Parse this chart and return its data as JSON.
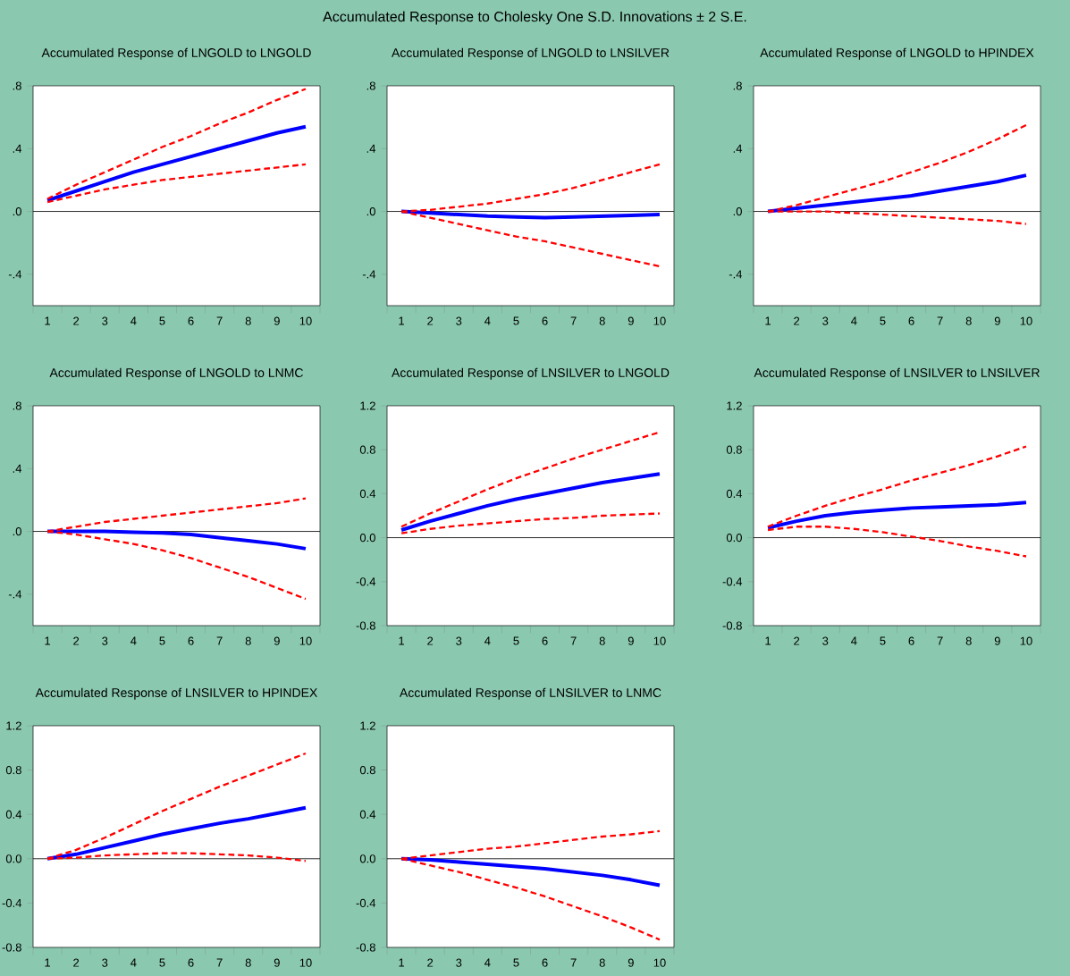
{
  "chart_data": [
    {
      "type": "other",
      "title": "Accumulated Response to Cholesky One S.D. Innovations ± 2 S.E."
    },
    {
      "type": "line",
      "title": "Accumulated Response of  LNGOLD to LNGOLD",
      "categories": [
        "1",
        "2",
        "3",
        "4",
        "5",
        "6",
        "7",
        "8",
        "9",
        "10"
      ],
      "ylim": [
        -0.6,
        0.8
      ],
      "yticks": [
        {
          "value": 0.8,
          "label": ".8"
        },
        {
          "value": 0.4,
          "label": ".4"
        },
        {
          "value": 0,
          "label": ".0"
        },
        {
          "value": -0.4,
          "label": "-.4"
        }
      ],
      "ref_lines": [
        {
          "axis": "y",
          "value": 0,
          "color": "#000000"
        }
      ],
      "series": [
        {
          "color": "#0000ff",
          "line_style": "solid",
          "values": [
            0.07,
            0.13,
            0.19,
            0.25,
            0.3,
            0.35,
            0.4,
            0.45,
            0.5,
            0.54
          ]
        },
        {
          "color": "#ff0000",
          "line_style": "dashed",
          "values": [
            0.08,
            0.17,
            0.25,
            0.33,
            0.41,
            0.48,
            0.56,
            0.63,
            0.71,
            0.78
          ]
        },
        {
          "color": "#ff0000",
          "line_style": "dashed",
          "values": [
            0.06,
            0.1,
            0.14,
            0.17,
            0.2,
            0.22,
            0.24,
            0.26,
            0.28,
            0.3
          ]
        }
      ]
    },
    {
      "type": "line",
      "title": "Accumulated Response of  LNGOLD to LNSILVER",
      "categories": [
        "1",
        "2",
        "3",
        "4",
        "5",
        "6",
        "7",
        "8",
        "9",
        "10"
      ],
      "ylim": [
        -0.6,
        0.8
      ],
      "yticks": [
        {
          "value": 0.8,
          "label": ".8"
        },
        {
          "value": 0.4,
          "label": ".4"
        },
        {
          "value": 0,
          "label": ".0"
        },
        {
          "value": -0.4,
          "label": "-.4"
        }
      ],
      "ref_lines": [
        {
          "axis": "y",
          "value": 0,
          "color": "#000000"
        }
      ],
      "series": [
        {
          "color": "#0000ff",
          "line_style": "solid",
          "values": [
            0,
            -0.01,
            -0.02,
            -0.03,
            -0.035,
            -0.04,
            -0.035,
            -0.03,
            -0.025,
            -0.02
          ]
        },
        {
          "color": "#ff0000",
          "line_style": "dashed",
          "values": [
            0,
            0.01,
            0.03,
            0.05,
            0.08,
            0.11,
            0.15,
            0.2,
            0.25,
            0.3
          ]
        },
        {
          "color": "#ff0000",
          "line_style": "dashed",
          "values": [
            0,
            -0.04,
            -0.08,
            -0.12,
            -0.16,
            -0.19,
            -0.23,
            -0.27,
            -0.31,
            -0.35
          ]
        }
      ]
    },
    {
      "type": "line",
      "title": "Accumulated Response of  LNGOLD to HPINDEX",
      "categories": [
        "1",
        "2",
        "3",
        "4",
        "5",
        "6",
        "7",
        "8",
        "9",
        "10"
      ],
      "ylim": [
        -0.6,
        0.8
      ],
      "yticks": [
        {
          "value": 0.8,
          "label": ".8"
        },
        {
          "value": 0.4,
          "label": ".4"
        },
        {
          "value": 0,
          "label": ".0"
        },
        {
          "value": -0.4,
          "label": "-.4"
        }
      ],
      "ref_lines": [
        {
          "axis": "y",
          "value": 0,
          "color": "#000000"
        }
      ],
      "series": [
        {
          "color": "#0000ff",
          "line_style": "solid",
          "values": [
            0,
            0.02,
            0.04,
            0.06,
            0.08,
            0.1,
            0.13,
            0.16,
            0.19,
            0.23
          ]
        },
        {
          "color": "#ff0000",
          "line_style": "dashed",
          "values": [
            0,
            0.04,
            0.09,
            0.14,
            0.19,
            0.25,
            0.31,
            0.38,
            0.46,
            0.55
          ]
        },
        {
          "color": "#ff0000",
          "line_style": "dashed",
          "values": [
            0,
            0,
            0,
            -0.01,
            -0.02,
            -0.03,
            -0.04,
            -0.05,
            -0.06,
            -0.08
          ]
        }
      ]
    },
    {
      "type": "line",
      "title": "Accumulated Response of  LNGOLD to LNMC",
      "categories": [
        "1",
        "2",
        "3",
        "4",
        "5",
        "6",
        "7",
        "8",
        "9",
        "10"
      ],
      "ylim": [
        -0.6,
        0.8
      ],
      "yticks": [
        {
          "value": 0.8,
          "label": ".8"
        },
        {
          "value": 0.4,
          "label": ".4"
        },
        {
          "value": 0,
          "label": ".0"
        },
        {
          "value": -0.4,
          "label": "-.4"
        }
      ],
      "ref_lines": [
        {
          "axis": "y",
          "value": 0,
          "color": "#000000"
        }
      ],
      "series": [
        {
          "color": "#0000ff",
          "line_style": "solid",
          "values": [
            0,
            0,
            0,
            -0.005,
            -0.01,
            -0.02,
            -0.04,
            -0.06,
            -0.08,
            -0.11
          ]
        },
        {
          "color": "#ff0000",
          "line_style": "dashed",
          "values": [
            0,
            0.03,
            0.06,
            0.08,
            0.1,
            0.12,
            0.14,
            0.16,
            0.18,
            0.21
          ]
        },
        {
          "color": "#ff0000",
          "line_style": "dashed",
          "values": [
            0,
            -0.02,
            -0.05,
            -0.08,
            -0.12,
            -0.17,
            -0.23,
            -0.29,
            -0.36,
            -0.43
          ]
        }
      ]
    },
    {
      "type": "line",
      "title": "Accumulated Response of  LNSILVER to LNGOLD",
      "categories": [
        "1",
        "2",
        "3",
        "4",
        "5",
        "6",
        "7",
        "8",
        "9",
        "10"
      ],
      "ylim": [
        -0.8,
        1.2
      ],
      "yticks": [
        {
          "value": 1.2,
          "label": "1.2"
        },
        {
          "value": 0.8,
          "label": "0.8"
        },
        {
          "value": 0.4,
          "label": "0.4"
        },
        {
          "value": 0,
          "label": "0.0"
        },
        {
          "value": -0.4,
          "label": "-0.4"
        },
        {
          "value": -0.8,
          "label": "-0.8"
        }
      ],
      "ref_lines": [
        {
          "axis": "y",
          "value": 0,
          "color": "#000000"
        }
      ],
      "series": [
        {
          "color": "#0000ff",
          "line_style": "solid",
          "values": [
            0.07,
            0.15,
            0.22,
            0.29,
            0.35,
            0.4,
            0.45,
            0.5,
            0.54,
            0.58
          ]
        },
        {
          "color": "#ff0000",
          "line_style": "dashed",
          "values": [
            0.1,
            0.22,
            0.33,
            0.44,
            0.54,
            0.63,
            0.72,
            0.8,
            0.88,
            0.96
          ]
        },
        {
          "color": "#ff0000",
          "line_style": "dashed",
          "values": [
            0.04,
            0.08,
            0.11,
            0.13,
            0.15,
            0.17,
            0.18,
            0.2,
            0.21,
            0.22
          ]
        }
      ]
    },
    {
      "type": "line",
      "title": "Accumulated Response of  LNSILVER to LNSILVER",
      "categories": [
        "1",
        "2",
        "3",
        "4",
        "5",
        "6",
        "7",
        "8",
        "9",
        "10"
      ],
      "ylim": [
        -0.8,
        1.2
      ],
      "yticks": [
        {
          "value": 1.2,
          "label": "1.2"
        },
        {
          "value": 0.8,
          "label": "0.8"
        },
        {
          "value": 0.4,
          "label": "0.4"
        },
        {
          "value": 0,
          "label": "0.0"
        },
        {
          "value": -0.4,
          "label": "-0.4"
        },
        {
          "value": -0.8,
          "label": "-0.8"
        }
      ],
      "ref_lines": [
        {
          "axis": "y",
          "value": 0,
          "color": "#000000"
        }
      ],
      "series": [
        {
          "color": "#0000ff",
          "line_style": "solid",
          "values": [
            0.09,
            0.15,
            0.2,
            0.23,
            0.25,
            0.27,
            0.28,
            0.29,
            0.3,
            0.32
          ]
        },
        {
          "color": "#ff0000",
          "line_style": "dashed",
          "values": [
            0.1,
            0.2,
            0.29,
            0.37,
            0.44,
            0.52,
            0.59,
            0.66,
            0.74,
            0.83
          ]
        },
        {
          "color": "#ff0000",
          "line_style": "dashed",
          "values": [
            0.07,
            0.1,
            0.1,
            0.08,
            0.05,
            0.01,
            -0.03,
            -0.08,
            -0.12,
            -0.17
          ]
        }
      ]
    },
    {
      "type": "line",
      "title": "Accumulated Response of  LNSILVER to HPINDEX",
      "categories": [
        "1",
        "2",
        "3",
        "4",
        "5",
        "6",
        "7",
        "8",
        "9",
        "10"
      ],
      "ylim": [
        -0.8,
        1.2
      ],
      "yticks": [
        {
          "value": 1.2,
          "label": "1.2"
        },
        {
          "value": 0.8,
          "label": "0.8"
        },
        {
          "value": 0.4,
          "label": "0.4"
        },
        {
          "value": 0,
          "label": "0.0"
        },
        {
          "value": -0.4,
          "label": "-0.4"
        },
        {
          "value": -0.8,
          "label": "-0.8"
        }
      ],
      "ref_lines": [
        {
          "axis": "y",
          "value": 0,
          "color": "#000000"
        }
      ],
      "series": [
        {
          "color": "#0000ff",
          "line_style": "solid",
          "values": [
            0,
            0.04,
            0.1,
            0.16,
            0.22,
            0.27,
            0.32,
            0.36,
            0.41,
            0.46
          ]
        },
        {
          "color": "#ff0000",
          "line_style": "dashed",
          "values": [
            0,
            0.08,
            0.19,
            0.31,
            0.43,
            0.54,
            0.65,
            0.75,
            0.85,
            0.95
          ]
        },
        {
          "color": "#ff0000",
          "line_style": "dashed",
          "values": [
            0,
            0.01,
            0.03,
            0.04,
            0.05,
            0.05,
            0.04,
            0.03,
            0.01,
            -0.02
          ]
        }
      ]
    },
    {
      "type": "line",
      "title": "Accumulated Response of  LNSILVER to LNMC",
      "categories": [
        "1",
        "2",
        "3",
        "4",
        "5",
        "6",
        "7",
        "8",
        "9",
        "10"
      ],
      "ylim": [
        -0.8,
        1.2
      ],
      "yticks": [
        {
          "value": 1.2,
          "label": "1.2"
        },
        {
          "value": 0.8,
          "label": "0.8"
        },
        {
          "value": 0.4,
          "label": "0.4"
        },
        {
          "value": 0,
          "label": "0.0"
        },
        {
          "value": -0.4,
          "label": "-0.4"
        },
        {
          "value": -0.8,
          "label": "-0.8"
        }
      ],
      "ref_lines": [
        {
          "axis": "y",
          "value": 0,
          "color": "#000000"
        }
      ],
      "series": [
        {
          "color": "#0000ff",
          "line_style": "solid",
          "values": [
            0,
            -0.01,
            -0.03,
            -0.05,
            -0.07,
            -0.09,
            -0.12,
            -0.15,
            -0.19,
            -0.24
          ]
        },
        {
          "color": "#ff0000",
          "line_style": "dashed",
          "values": [
            0,
            0.03,
            0.06,
            0.09,
            0.11,
            0.14,
            0.17,
            0.2,
            0.22,
            0.25
          ]
        },
        {
          "color": "#ff0000",
          "line_style": "dashed",
          "values": [
            0,
            -0.06,
            -0.12,
            -0.19,
            -0.26,
            -0.34,
            -0.43,
            -0.52,
            -0.62,
            -0.73
          ]
        }
      ]
    }
  ]
}
